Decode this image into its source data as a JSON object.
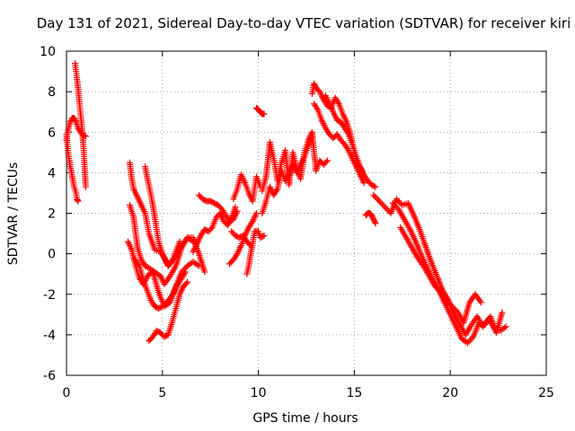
{
  "chart_data": {
    "type": "scatter",
    "title": "Day 131 of 2021, Sidereal Day-to-day VTEC variation (SDTVAR) for receiver kiri",
    "xlabel": "GPS time / hours",
    "ylabel": "SDTVAR / TECUs",
    "xlim": [
      0,
      25
    ],
    "ylim": [
      -6,
      10
    ],
    "x_ticks": [
      "0",
      "5",
      "10",
      "15",
      "20",
      "25"
    ],
    "y_ticks": [
      "-6",
      "-4",
      "-2",
      "0",
      "2",
      "4",
      "6",
      "8",
      "10"
    ],
    "grid": true,
    "marker": "+",
    "colors": {
      "series": "#ff0000",
      "grid": "#a0a0a0",
      "axis": "#000000"
    },
    "series": [
      {
        "name": "trace-1",
        "x": [
          0.0,
          0.1,
          0.2,
          0.3,
          0.4,
          0.5,
          0.6,
          0.8,
          1.0
        ],
        "y": [
          5.6,
          6.2,
          6.5,
          6.7,
          6.7,
          6.5,
          6.2,
          5.9,
          5.8
        ]
      },
      {
        "name": "trace-2",
        "x": [
          0.0,
          0.1,
          0.2,
          0.3,
          0.4,
          0.5,
          0.55,
          0.6
        ],
        "y": [
          5.9,
          4.9,
          4.3,
          3.8,
          3.3,
          3.0,
          2.7,
          2.6
        ]
      },
      {
        "name": "trace-3",
        "x": [
          0.45,
          0.5,
          0.6,
          0.7,
          0.8,
          0.85,
          0.9,
          0.95,
          1.0
        ],
        "y": [
          9.4,
          9.0,
          8.2,
          7.2,
          6.3,
          5.7,
          5.1,
          4.2,
          3.3
        ]
      },
      {
        "name": "trace-4",
        "x": [
          3.3,
          3.4,
          3.5,
          3.8,
          4.1,
          4.3,
          4.6,
          4.9,
          5.1,
          5.3,
          5.6,
          6.0,
          6.3,
          6.6,
          6.9,
          7.2
        ],
        "y": [
          4.5,
          3.7,
          3.2,
          2.6,
          2.0,
          1.0,
          0.2,
          0.1,
          -0.2,
          -0.6,
          -0.2,
          0.4,
          0.8,
          0.8,
          0.0,
          -0.9
        ]
      },
      {
        "name": "trace-5",
        "x": [
          3.3,
          3.5,
          3.7,
          3.9,
          4.1,
          4.3,
          4.6,
          4.9,
          5.1,
          5.4,
          5.7,
          6.0,
          6.3,
          6.6
        ],
        "y": [
          2.4,
          1.8,
          0.3,
          -0.3,
          -0.6,
          -0.7,
          -0.9,
          -1.1,
          -1.5,
          -1.1,
          -0.6,
          0.3,
          0.8,
          0.6
        ]
      },
      {
        "name": "trace-6",
        "x": [
          3.2,
          3.4,
          3.6,
          3.8,
          4.0,
          4.3,
          4.5,
          4.8,
          5.1,
          5.4,
          5.7,
          6.0,
          6.3,
          6.6,
          6.9
        ],
        "y": [
          0.6,
          0.2,
          -0.6,
          -1.2,
          -1.5,
          -1.0,
          -0.9,
          -1.9,
          -2.6,
          -2.4,
          -1.6,
          -0.9,
          -0.6,
          -0.4,
          -0.6
        ]
      },
      {
        "name": "trace-7",
        "x": [
          3.5,
          3.8,
          4.0,
          4.2,
          4.4,
          4.6,
          4.8,
          5.0,
          5.2,
          5.4,
          5.6,
          5.8,
          6.0,
          6.2
        ],
        "y": [
          -0.2,
          -0.6,
          -1.3,
          -1.8,
          -2.3,
          -2.6,
          -2.7,
          -2.6,
          -2.4,
          -2.2,
          -1.9,
          -1.5,
          -1.2,
          -0.9
        ]
      },
      {
        "name": "trace-8",
        "x": [
          4.1,
          4.2,
          4.4,
          4.5,
          4.6,
          4.8,
          5.0,
          5.2,
          5.3,
          5.5,
          5.7,
          5.9
        ],
        "y": [
          4.3,
          3.8,
          2.9,
          2.4,
          1.8,
          0.6,
          0.0,
          -0.4,
          -0.6,
          -0.4,
          0.1,
          0.6
        ]
      },
      {
        "name": "trace-9",
        "x": [
          4.3,
          4.5,
          4.7,
          4.9,
          5.1,
          5.3,
          5.5,
          5.7,
          5.9,
          6.1,
          6.3
        ],
        "y": [
          -4.3,
          -4.1,
          -3.8,
          -3.9,
          -4.1,
          -4.0,
          -3.4,
          -2.7,
          -2.0,
          -1.6,
          -1.4
        ]
      },
      {
        "name": "trace-10",
        "x": [
          6.9,
          7.1,
          7.3,
          7.5,
          7.7,
          7.9,
          8.1,
          8.3,
          8.5,
          8.7,
          8.9
        ],
        "y": [
          2.9,
          2.7,
          2.6,
          2.6,
          2.5,
          2.4,
          2.2,
          1.9,
          1.6,
          1.7,
          2.1
        ]
      },
      {
        "name": "trace-11",
        "x": [
          6.6,
          6.8,
          7.0,
          7.2,
          7.4,
          7.6,
          7.8,
          8.0,
          8.2,
          8.4,
          8.6,
          8.8
        ],
        "y": [
          0.1,
          0.5,
          0.9,
          1.2,
          1.1,
          1.3,
          1.8,
          2.0,
          1.6,
          1.4,
          1.8,
          2.3
        ]
      },
      {
        "name": "trace-12",
        "x": [
          8.7,
          8.9,
          9.1,
          9.3,
          9.5,
          9.7,
          9.9,
          10.1
        ],
        "y": [
          2.7,
          3.2,
          3.9,
          3.5,
          3.0,
          2.6,
          3.8,
          3.3
        ]
      },
      {
        "name": "trace-13",
        "x": [
          8.5,
          8.7,
          8.9,
          9.1,
          9.3,
          9.5,
          9.7,
          9.9
        ],
        "y": [
          -0.5,
          -0.3,
          0.0,
          0.4,
          0.9,
          1.3,
          1.6,
          2.0
        ]
      },
      {
        "name": "trace-14",
        "x": [
          8.6,
          8.8,
          9.0,
          9.2,
          9.4,
          9.6
        ],
        "y": [
          1.1,
          0.9,
          0.8,
          0.9,
          0.6,
          0.4
        ]
      },
      {
        "name": "trace-15",
        "x": [
          9.4,
          9.5,
          9.6,
          9.7,
          9.8,
          10.0,
          10.1,
          10.3
        ],
        "y": [
          -1.0,
          -0.6,
          0.0,
          0.5,
          1.1,
          1.1,
          0.8,
          0.9
        ]
      },
      {
        "name": "trace-16",
        "x": [
          9.9,
          10.0,
          10.1,
          10.2,
          10.3
        ],
        "y": [
          7.2,
          7.1,
          7.0,
          6.9,
          6.9
        ]
      },
      {
        "name": "trace-17",
        "x": [
          10.2,
          10.4,
          10.6,
          10.8,
          11.0,
          11.2,
          11.4,
          11.6,
          11.8,
          12.0,
          12.2,
          12.4,
          12.6,
          12.8,
          13.0,
          13.2,
          13.4,
          13.6
        ],
        "y": [
          3.1,
          3.8,
          5.5,
          4.7,
          3.6,
          4.5,
          5.1,
          3.4,
          5.0,
          4.2,
          3.7,
          5.0,
          5.6,
          6.0,
          4.1,
          4.6,
          4.4,
          4.6
        ]
      },
      {
        "name": "trace-18",
        "x": [
          10.2,
          10.4,
          10.6,
          10.8,
          11.0,
          11.2,
          11.4,
          11.6,
          11.8,
          12.0,
          12.2,
          12.4,
          12.6,
          12.8
        ],
        "y": [
          2.0,
          2.6,
          3.3,
          2.9,
          3.2,
          4.1,
          3.6,
          3.9,
          4.4,
          4.0,
          4.4,
          4.8,
          5.3,
          5.8
        ]
      },
      {
        "name": "trace-19",
        "x": [
          12.8,
          12.9,
          13.0,
          13.2,
          13.4,
          13.6,
          13.8,
          14.0,
          14.2,
          14.4,
          14.6,
          14.8,
          15.0,
          15.2,
          15.4
        ],
        "y": [
          7.9,
          8.4,
          8.2,
          8.0,
          7.6,
          7.3,
          7.2,
          7.7,
          7.4,
          6.9,
          6.5,
          5.9,
          5.0,
          4.4,
          4.1
        ]
      },
      {
        "name": "trace-20",
        "x": [
          12.9,
          13.1,
          13.3,
          13.5,
          13.7,
          13.9,
          14.1,
          14.3,
          14.5,
          14.7,
          14.9,
          15.1,
          15.3,
          15.5
        ],
        "y": [
          7.4,
          7.1,
          6.6,
          6.2,
          5.9,
          5.7,
          5.9,
          5.6,
          5.4,
          5.1,
          4.7,
          4.3,
          3.9,
          3.5
        ]
      },
      {
        "name": "trace-21",
        "x": [
          13.5,
          13.7,
          13.9,
          14.1,
          14.3,
          14.5,
          14.7,
          14.9,
          15.1,
          15.3,
          15.5,
          15.7,
          15.9,
          16.1
        ],
        "y": [
          7.8,
          7.4,
          7.0,
          6.6,
          6.5,
          6.2,
          5.9,
          5.4,
          4.8,
          4.3,
          3.9,
          3.6,
          3.4,
          3.3
        ]
      },
      {
        "name": "trace-22",
        "x": [
          15.6,
          15.7,
          15.8,
          15.9,
          16.0,
          16.1
        ],
        "y": [
          1.9,
          2.0,
          2.0,
          1.9,
          1.7,
          1.5
        ]
      },
      {
        "name": "trace-23",
        "x": [
          16.0,
          16.3,
          16.6,
          16.9,
          17.2,
          17.5,
          17.8,
          18.1,
          18.4,
          18.7,
          19.0,
          19.3,
          19.6,
          19.9,
          20.2,
          20.5,
          20.8,
          21.1,
          21.4,
          21.7,
          22.0,
          22.3,
          22.6,
          22.9
        ],
        "y": [
          2.9,
          2.6,
          2.3,
          2.0,
          2.7,
          2.4,
          2.5,
          1.9,
          1.2,
          0.4,
          -0.4,
          -1.1,
          -1.8,
          -2.3,
          -3.0,
          -3.5,
          -4.0,
          -3.5,
          -3.1,
          -3.6,
          -3.2,
          -3.7,
          -3.8,
          -3.6
        ]
      },
      {
        "name": "trace-24",
        "x": [
          17.0,
          17.3,
          17.6,
          17.9,
          18.2,
          18.5,
          18.8,
          19.1,
          19.4,
          19.7,
          20.0,
          20.3,
          20.6,
          20.9,
          21.2,
          21.5,
          21.8,
          22.1,
          22.4,
          22.7
        ],
        "y": [
          2.5,
          2.2,
          1.7,
          1.2,
          0.6,
          -0.1,
          -0.7,
          -1.3,
          -1.8,
          -2.4,
          -3.0,
          -3.6,
          -4.2,
          -4.4,
          -4.1,
          -3.4,
          -3.5,
          -3.1,
          -3.9,
          -2.9
        ]
      },
      {
        "name": "trace-25",
        "x": [
          17.4,
          17.7,
          18.0,
          18.3,
          18.6,
          18.9,
          19.2,
          19.5,
          19.8,
          20.1,
          20.4,
          20.7,
          21.0,
          21.3,
          21.6
        ],
        "y": [
          1.3,
          0.8,
          0.3,
          -0.2,
          -0.6,
          -1.1,
          -1.6,
          -1.9,
          -2.3,
          -2.6,
          -2.9,
          -3.4,
          -2.4,
          -2.0,
          -2.4
        ]
      }
    ]
  }
}
